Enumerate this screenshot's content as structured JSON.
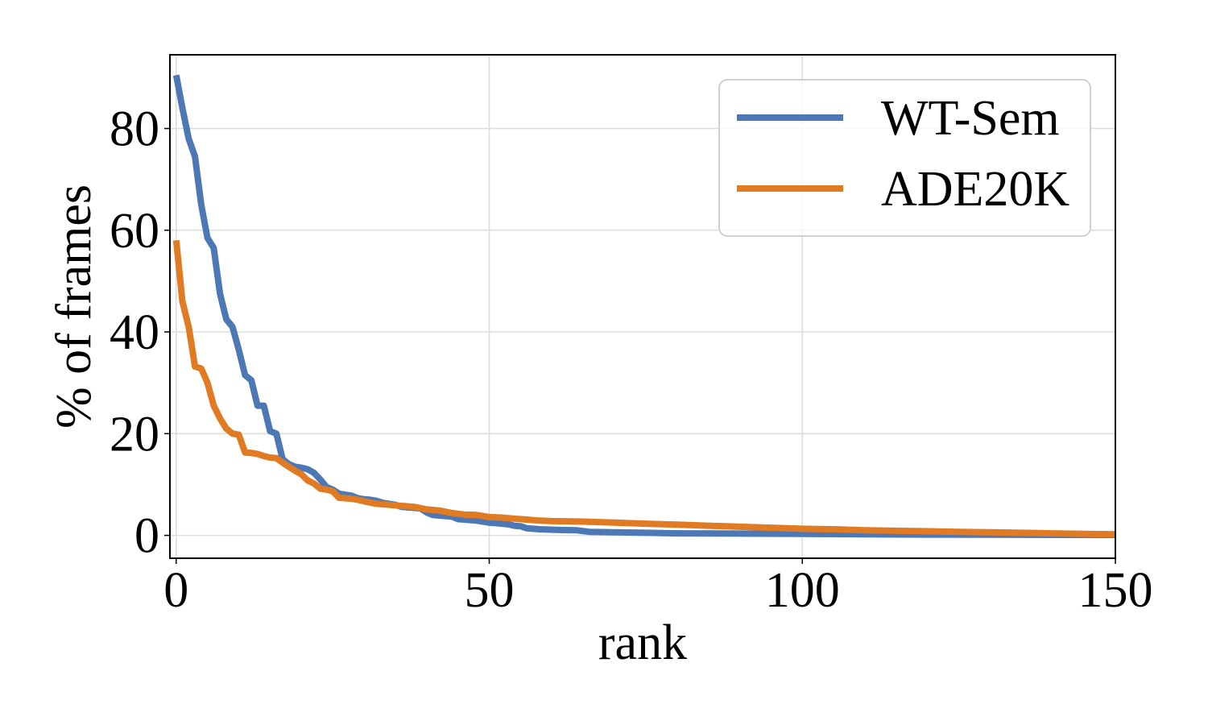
{
  "chart_data": {
    "type": "line",
    "title": "",
    "xlabel": "rank",
    "ylabel": "% of frames",
    "xlim": [
      -1,
      150
    ],
    "ylim": [
      -4.5,
      94.5
    ],
    "xticks": [
      0,
      50,
      100,
      150
    ],
    "yticks": [
      0,
      20,
      40,
      60,
      80
    ],
    "grid": true,
    "legend_position": "top-right",
    "series": [
      {
        "name": "WT-Sem",
        "color": "#4c78b5",
        "points": [
          [
            0,
            90.5
          ],
          [
            1,
            84
          ],
          [
            2,
            78
          ],
          [
            3,
            74.5
          ],
          [
            4,
            65
          ],
          [
            5,
            58.5
          ],
          [
            6,
            56.5
          ],
          [
            7,
            47.5
          ],
          [
            8,
            42.5
          ],
          [
            9,
            41
          ],
          [
            10,
            36.5
          ],
          [
            11,
            31.5
          ],
          [
            12,
            30.5
          ],
          [
            13,
            25.5
          ],
          [
            14,
            25.5
          ],
          [
            15,
            20.5
          ],
          [
            16,
            20
          ],
          [
            17,
            15
          ],
          [
            18,
            14
          ],
          [
            19,
            13.5
          ],
          [
            20,
            13.3
          ],
          [
            21,
            13
          ],
          [
            22,
            12.3
          ],
          [
            23,
            11
          ],
          [
            24,
            9.5
          ],
          [
            25,
            9
          ],
          [
            26,
            8.2
          ],
          [
            27,
            8
          ],
          [
            28,
            7.8
          ],
          [
            29,
            7.3
          ],
          [
            30,
            7.1
          ],
          [
            31,
            7
          ],
          [
            32,
            6.8
          ],
          [
            33,
            6.4
          ],
          [
            34,
            6.2
          ],
          [
            35,
            6
          ],
          [
            36,
            5.6
          ],
          [
            37,
            5.5
          ],
          [
            38,
            5.4
          ],
          [
            39,
            5.3
          ],
          [
            40,
            4.5
          ],
          [
            41,
            4
          ],
          [
            42,
            3.9
          ],
          [
            43,
            3.8
          ],
          [
            44,
            3.7
          ],
          [
            45,
            3.2
          ],
          [
            46,
            3.1
          ],
          [
            47,
            3
          ],
          [
            48,
            2.9
          ],
          [
            49,
            2.7
          ],
          [
            50,
            2.5
          ],
          [
            51,
            2.4
          ],
          [
            52,
            2.3
          ],
          [
            53,
            2.2
          ],
          [
            54,
            1.9
          ],
          [
            55,
            1.8
          ],
          [
            56,
            1.4
          ],
          [
            57,
            1.3
          ],
          [
            58,
            1.2
          ],
          [
            59,
            1.15
          ],
          [
            60,
            1.1
          ],
          [
            62,
            1.05
          ],
          [
            64,
            1
          ],
          [
            66,
            0.7
          ],
          [
            70,
            0.6
          ],
          [
            75,
            0.5
          ],
          [
            80,
            0.4
          ],
          [
            90,
            0.35
          ],
          [
            100,
            0.3
          ],
          [
            110,
            0.2
          ],
          [
            120,
            0.15
          ],
          [
            130,
            0.12
          ],
          [
            140,
            0.1
          ],
          [
            150,
            0.1
          ]
        ]
      },
      {
        "name": "ADE20K",
        "color": "#e07b23",
        "points": [
          [
            0,
            58
          ],
          [
            1,
            46
          ],
          [
            2,
            41
          ],
          [
            3,
            33.2
          ],
          [
            4,
            32.8
          ],
          [
            5,
            30
          ],
          [
            6,
            25.5
          ],
          [
            7,
            23
          ],
          [
            8,
            21
          ],
          [
            9,
            20
          ],
          [
            10,
            19.8
          ],
          [
            11,
            16.3
          ],
          [
            12,
            16.2
          ],
          [
            13,
            16
          ],
          [
            14,
            15.6
          ],
          [
            15,
            15.3
          ],
          [
            16,
            15.2
          ],
          [
            17,
            14.3
          ],
          [
            18,
            13.5
          ],
          [
            19,
            12.7
          ],
          [
            20,
            12
          ],
          [
            21,
            10.8
          ],
          [
            22,
            10.2
          ],
          [
            23,
            9.2
          ],
          [
            24,
            9
          ],
          [
            25,
            8.7
          ],
          [
            26,
            7.4
          ],
          [
            27,
            7.3
          ],
          [
            28,
            7.2
          ],
          [
            29,
            7
          ],
          [
            30,
            6.7
          ],
          [
            32,
            6.2
          ],
          [
            34,
            6
          ],
          [
            36,
            5.8
          ],
          [
            38,
            5.6
          ],
          [
            40,
            5.1
          ],
          [
            42,
            4.9
          ],
          [
            44,
            4.4
          ],
          [
            46,
            4.1
          ],
          [
            48,
            4
          ],
          [
            49,
            3.8
          ],
          [
            50,
            3.6
          ],
          [
            52,
            3.5
          ],
          [
            54,
            3.3
          ],
          [
            56,
            3.1
          ],
          [
            58,
            2.9
          ],
          [
            60,
            2.8
          ],
          [
            65,
            2.7
          ],
          [
            70,
            2.5
          ],
          [
            75,
            2.3
          ],
          [
            80,
            2.1
          ],
          [
            85,
            1.9
          ],
          [
            90,
            1.7
          ],
          [
            95,
            1.5
          ],
          [
            100,
            1.3
          ],
          [
            105,
            1.2
          ],
          [
            110,
            1
          ],
          [
            115,
            0.9
          ],
          [
            120,
            0.8
          ],
          [
            125,
            0.7
          ],
          [
            130,
            0.6
          ],
          [
            135,
            0.5
          ],
          [
            140,
            0.4
          ],
          [
            145,
            0.3
          ],
          [
            150,
            0.2
          ]
        ]
      }
    ]
  }
}
